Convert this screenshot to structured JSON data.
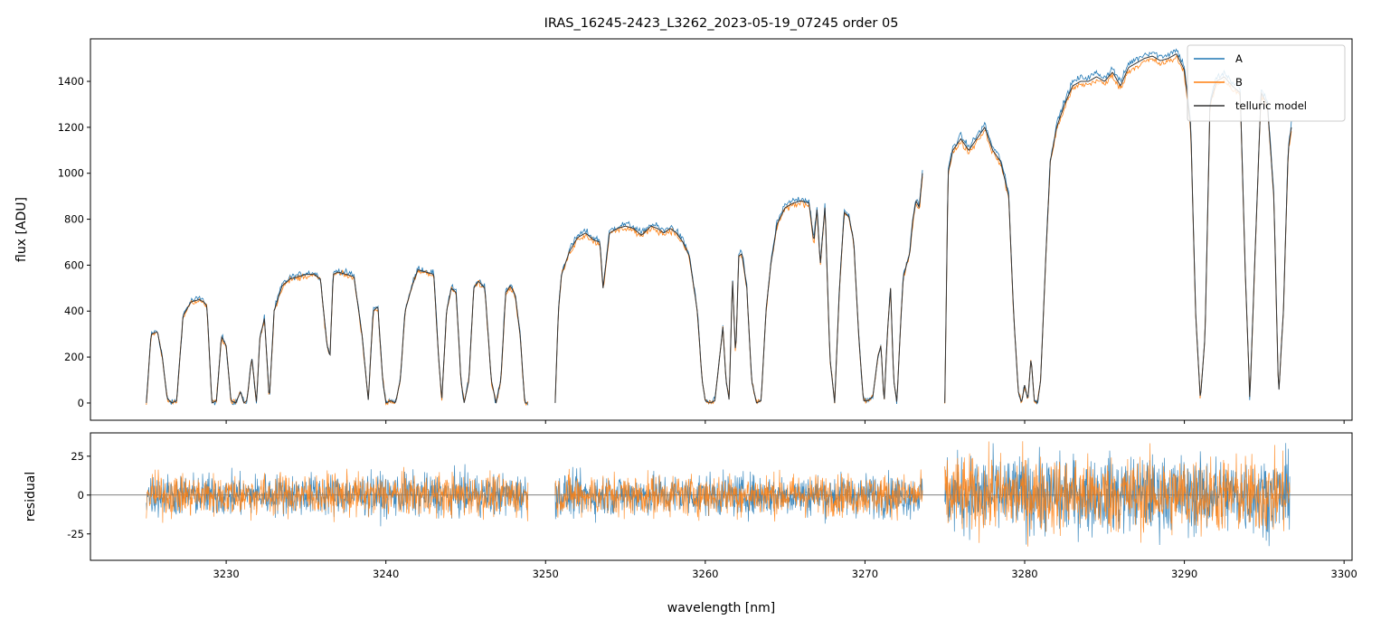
{
  "chart_data": [
    {
      "type": "line",
      "title": "IRAS_16245-2423_L3262_2023-05-19_07245  order 05",
      "xlabel": "",
      "ylabel": "flux [ADU]",
      "xlim": [
        3221.5,
        3300.5
      ],
      "ylim": [
        -75,
        1585
      ],
      "yticks": [
        0,
        200,
        400,
        600,
        800,
        1000,
        1200,
        1400
      ],
      "legend": "top-right",
      "series": [
        {
          "name": "A",
          "color": "#1f77b4"
        },
        {
          "name": "B",
          "color": "#ff7f0e"
        },
        {
          "name": "telluric model",
          "color": "#333333"
        }
      ],
      "segments": [
        {
          "x": [
            3225.0,
            3225.3,
            3225.7,
            3226.0,
            3226.3,
            3226.6,
            3226.9,
            3227.3,
            3227.8,
            3228.3,
            3228.6,
            3228.8,
            3229.1,
            3229.4,
            3229.7,
            3230.0,
            3230.3,
            3230.6,
            3230.9,
            3231.1,
            3231.3,
            3231.6,
            3231.9,
            3232.1,
            3232.4,
            3232.7,
            3233.0,
            3233.5,
            3234.0,
            3234.5,
            3235.0,
            3235.5,
            3235.9,
            3236.3,
            3236.5,
            3236.7,
            3237.0,
            3237.5,
            3238.0,
            3238.5,
            3238.9,
            3239.2,
            3239.5,
            3239.8,
            3240.0,
            3240.3,
            3240.6,
            3240.9,
            3241.2,
            3241.6,
            3242.0,
            3242.5,
            3243.0,
            3243.3,
            3243.5,
            3243.8,
            3244.1,
            3244.4,
            3244.7,
            3244.9,
            3245.2,
            3245.5,
            3245.8,
            3246.2,
            3246.6,
            3246.9,
            3247.2,
            3247.5,
            3247.8,
            3248.1,
            3248.4,
            3248.7,
            3248.9
          ],
          "y": [
            0,
            300,
            310,
            200,
            20,
            0,
            10,
            380,
            440,
            450,
            440,
            420,
            0,
            10,
            290,
            250,
            10,
            0,
            50,
            0,
            10,
            200,
            0,
            280,
            370,
            10,
            400,
            510,
            540,
            550,
            560,
            560,
            540,
            260,
            200,
            560,
            570,
            560,
            550,
            300,
            10,
            400,
            420,
            100,
            0,
            10,
            0,
            100,
            400,
            500,
            580,
            570,
            560,
            200,
            10,
            400,
            500,
            480,
            100,
            0,
            100,
            500,
            530,
            500,
            100,
            0,
            100,
            480,
            510,
            470,
            300,
            0,
            0
          ]
        },
        {
          "x": [
            3250.6,
            3250.8,
            3251.0,
            3251.5,
            3252.0,
            3252.5,
            3253.0,
            3253.4,
            3253.6,
            3254.0,
            3254.5,
            3255.0,
            3255.5,
            3256.0,
            3256.3,
            3256.6,
            3257.0,
            3257.4,
            3257.8,
            3258.2,
            3258.6,
            3259.0,
            3259.5,
            3259.8,
            3260.0,
            3260.3,
            3260.6,
            3260.9,
            3261.1,
            3261.3,
            3261.5,
            3261.7,
            3261.9,
            3262.1,
            3262.3,
            3262.6,
            3262.9,
            3263.2,
            3263.5,
            3263.8,
            3264.1,
            3264.5,
            3265.0,
            3265.5,
            3266.0,
            3266.5,
            3266.8,
            3267.0,
            3267.2,
            3267.5,
            3267.8,
            3268.1,
            3268.4,
            3268.7,
            3269.0,
            3269.3,
            3269.6,
            3269.9,
            3270.2,
            3270.5,
            3270.8,
            3271.0,
            3271.2,
            3271.4,
            3271.6,
            3271.8,
            3272.0,
            3272.2,
            3272.4,
            3272.6,
            3272.8,
            3273.0,
            3273.2,
            3273.4,
            3273.6
          ],
          "y": [
            0,
            400,
            560,
            660,
            720,
            740,
            710,
            700,
            500,
            740,
            760,
            770,
            760,
            730,
            750,
            770,
            760,
            740,
            760,
            740,
            700,
            640,
            400,
            100,
            10,
            0,
            10,
            200,
            330,
            100,
            10,
            550,
            200,
            640,
            650,
            500,
            100,
            0,
            10,
            400,
            600,
            780,
            850,
            870,
            880,
            870,
            700,
            850,
            600,
            860,
            200,
            0,
            500,
            830,
            810,
            700,
            300,
            10,
            10,
            30,
            200,
            250,
            0,
            300,
            500,
            100,
            0,
            300,
            550,
            600,
            650,
            800,
            880,
            850,
            1000
          ]
        },
        {
          "x": [
            3275.0,
            3275.2,
            3275.5,
            3276.0,
            3276.5,
            3277.0,
            3277.5,
            3278.0,
            3278.5,
            3279.0,
            3279.3,
            3279.6,
            3279.8,
            3280.0,
            3280.2,
            3280.4,
            3280.6,
            3280.8,
            3281.0,
            3281.3,
            3281.6,
            3282.0,
            3282.5,
            3283.0,
            3283.5,
            3284.0,
            3284.5,
            3285.0,
            3285.5,
            3286.0,
            3286.5,
            3287.0,
            3287.5,
            3288.0,
            3288.5,
            3289.0,
            3289.5,
            3290.0,
            3290.4,
            3290.7,
            3291.0,
            3291.3,
            3291.6,
            3292.0,
            3292.5,
            3293.0,
            3293.5,
            3293.8,
            3294.1,
            3294.4,
            3294.8,
            3295.2,
            3295.6,
            3295.9,
            3296.2,
            3296.5,
            3296.7
          ],
          "y": [
            0,
            1000,
            1100,
            1150,
            1100,
            1150,
            1200,
            1100,
            1050,
            900,
            400,
            50,
            0,
            80,
            10,
            200,
            10,
            0,
            100,
            600,
            1050,
            1200,
            1300,
            1380,
            1400,
            1400,
            1420,
            1400,
            1440,
            1380,
            1460,
            1480,
            1500,
            1510,
            1490,
            1500,
            1520,
            1450,
            1200,
            400,
            10,
            300,
            1300,
            1400,
            1420,
            1380,
            1350,
            600,
            10,
            600,
            1350,
            1300,
            900,
            30,
            400,
            1100,
            1200
          ]
        }
      ]
    },
    {
      "type": "line",
      "title": "",
      "xlabel": "wavelength [nm]",
      "ylabel": "residual",
      "xlim": [
        3221.5,
        3300.5
      ],
      "ylim": [
        -42,
        40
      ],
      "xticks": [
        3230,
        3240,
        3250,
        3260,
        3270,
        3280,
        3290,
        3300
      ],
      "yticks": [
        -25,
        0,
        25
      ],
      "zero_line": true,
      "series": [
        {
          "name": "A",
          "color": "#1f77b4"
        },
        {
          "name": "B",
          "color": "#ff7f0e"
        }
      ],
      "segments": [
        {
          "x_range": [
            3225.0,
            3248.9
          ],
          "amplitude": 12
        },
        {
          "x_range": [
            3250.6,
            3273.6
          ],
          "amplitude": 12
        },
        {
          "x_range": [
            3275.0,
            3296.6
          ],
          "amplitude": 22
        }
      ]
    }
  ]
}
